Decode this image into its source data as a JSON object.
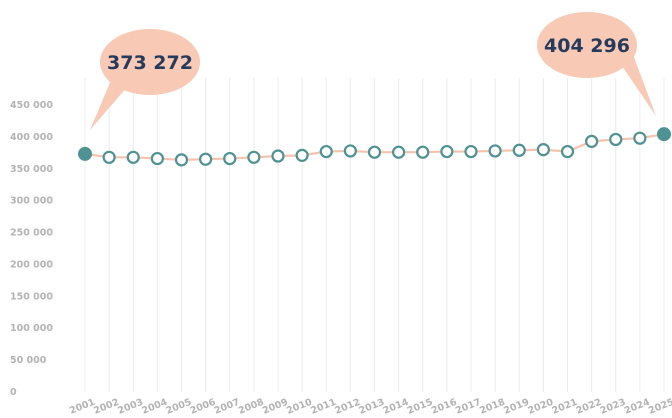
{
  "chart_data": {
    "type": "line",
    "x": [
      "2001",
      "2002",
      "2003",
      "2004",
      "2005",
      "2006",
      "2007",
      "2008",
      "2009",
      "2010",
      "2011",
      "2012",
      "2013",
      "2014",
      "2015",
      "2016",
      "2017",
      "2018",
      "2019",
      "2020",
      "2021",
      "2022",
      "2023",
      "2024",
      "2025"
    ],
    "values": [
      373272,
      368000,
      368000,
      366000,
      364000,
      365000,
      366000,
      368000,
      370000,
      371000,
      377000,
      378000,
      376000,
      376000,
      376000,
      377000,
      377000,
      378000,
      379000,
      380000,
      377000,
      393000,
      396000,
      398000,
      404296
    ],
    "ylim": [
      0,
      475000
    ],
    "yticks": [
      0,
      50000,
      100000,
      150000,
      200000,
      250000,
      300000,
      350000,
      400000,
      450000
    ],
    "ytick_labels": [
      "0",
      "50 000",
      "100 000",
      "150 000",
      "200 000",
      "250 000",
      "300 000",
      "350 000",
      "400 000",
      "450 000"
    ],
    "grid": "vertical",
    "annotations": [
      {
        "text": "373 272",
        "point": "2001"
      },
      {
        "text": "404 296",
        "point": "2025"
      }
    ],
    "colors": {
      "line": "#f5c3ad",
      "marker": "#4f9294",
      "bubble": "#f8c9b4",
      "bubble_text": "#263a5c",
      "grid": "#ececec",
      "ticks": "#b3b3b3"
    }
  }
}
